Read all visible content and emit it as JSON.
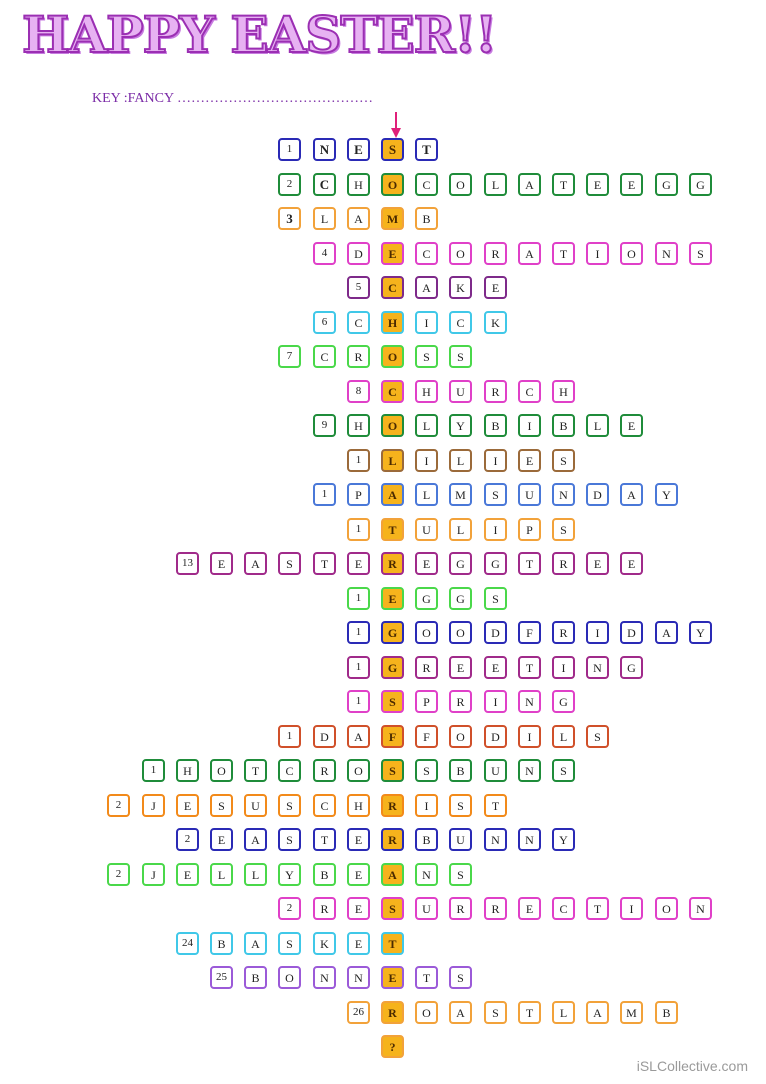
{
  "title": "HAPPY EASTER!!",
  "key_line": "KEY :FANCY ……………………………………",
  "footer": "iSLCollective.com",
  "highlight_color": "#f6b31c",
  "rows": [
    {
      "num": "1",
      "word": "NEST",
      "hi": 3,
      "color": "#2a2ab5",
      "bold": true
    },
    {
      "num": "2",
      "word": "CHOCOLATEEGG",
      "hi": 3,
      "color": "#1f8c3a",
      "boldFirst": true
    },
    {
      "num": "3",
      "word": "LAMB",
      "hi": 3,
      "color": "#f2a23a",
      "boldNum": true
    },
    {
      "num": "4",
      "word": "DECORATIONS",
      "hi": 2,
      "color": "#e040c8"
    },
    {
      "num": "5",
      "word": "CAKE",
      "hi": 1,
      "color": "#7e2a8a"
    },
    {
      "num": "6",
      "word": "CHICK",
      "hi": 2,
      "color": "#40c8e8"
    },
    {
      "num": "7",
      "word": "CROSS",
      "hi": 3,
      "color": "#4ad84a"
    },
    {
      "num": "8",
      "word": "CHURCH",
      "hi": 1,
      "color": "#e040c8"
    },
    {
      "num": "9",
      "word": "HOLYBIBLE",
      "hi": 2,
      "color": "#1f8c3a"
    },
    {
      "num": "1",
      "word": "LILIES",
      "hi": 1,
      "color": "#9b6a3a"
    },
    {
      "num": "1",
      "word": "PALMSUNDAY",
      "hi": 2,
      "color": "#4a78d8"
    },
    {
      "num": "1",
      "word": "TULIPS",
      "hi": 1,
      "color": "#f2a23a"
    },
    {
      "num": "13",
      "word": "EASTEREGGTREE",
      "hi": 6,
      "color": "#a02a8a"
    },
    {
      "num": "1",
      "word": "EGGS",
      "hi": 1,
      "color": "#4ad84a"
    },
    {
      "num": "1",
      "word": "GOODFRIDAY",
      "hi": 1,
      "color": "#2a2ab5"
    },
    {
      "num": "1",
      "word": "GREETING",
      "hi": 1,
      "color": "#a02a8a"
    },
    {
      "num": "1",
      "word": "SPRING",
      "hi": 1,
      "color": "#e040c8"
    },
    {
      "num": "1",
      "word": "DAFFODILS",
      "hi": 3,
      "color": "#d0502a"
    },
    {
      "num": "1",
      "word": "HOTCROSSBUNS",
      "hi": 7,
      "color": "#1f8c3a"
    },
    {
      "num": "2",
      "word": "JESUSCHRIST",
      "hi": 8,
      "color": "#f28a1a"
    },
    {
      "num": "2",
      "word": "EASTERBUNNY",
      "hi": 6,
      "color": "#2a2ab5"
    },
    {
      "num": "2",
      "word": "JELLYBEANS",
      "hi": 8,
      "color": "#4ad84a"
    },
    {
      "num": "2",
      "word": "RESURRECTION",
      "hi": 3,
      "color": "#e040c8"
    },
    {
      "num": "24",
      "word": "BASKET",
      "hi": 6,
      "color": "#40c8e8"
    },
    {
      "num": "25",
      "word": "BONNETS",
      "hi": 5,
      "color": "#9b5ad8"
    },
    {
      "num": "26",
      "word": "ROASTLAMB",
      "hi": 1,
      "color": "#f2a23a"
    },
    {
      "num": "",
      "word": "?",
      "hi": 1,
      "color": "#f2a23a"
    }
  ]
}
